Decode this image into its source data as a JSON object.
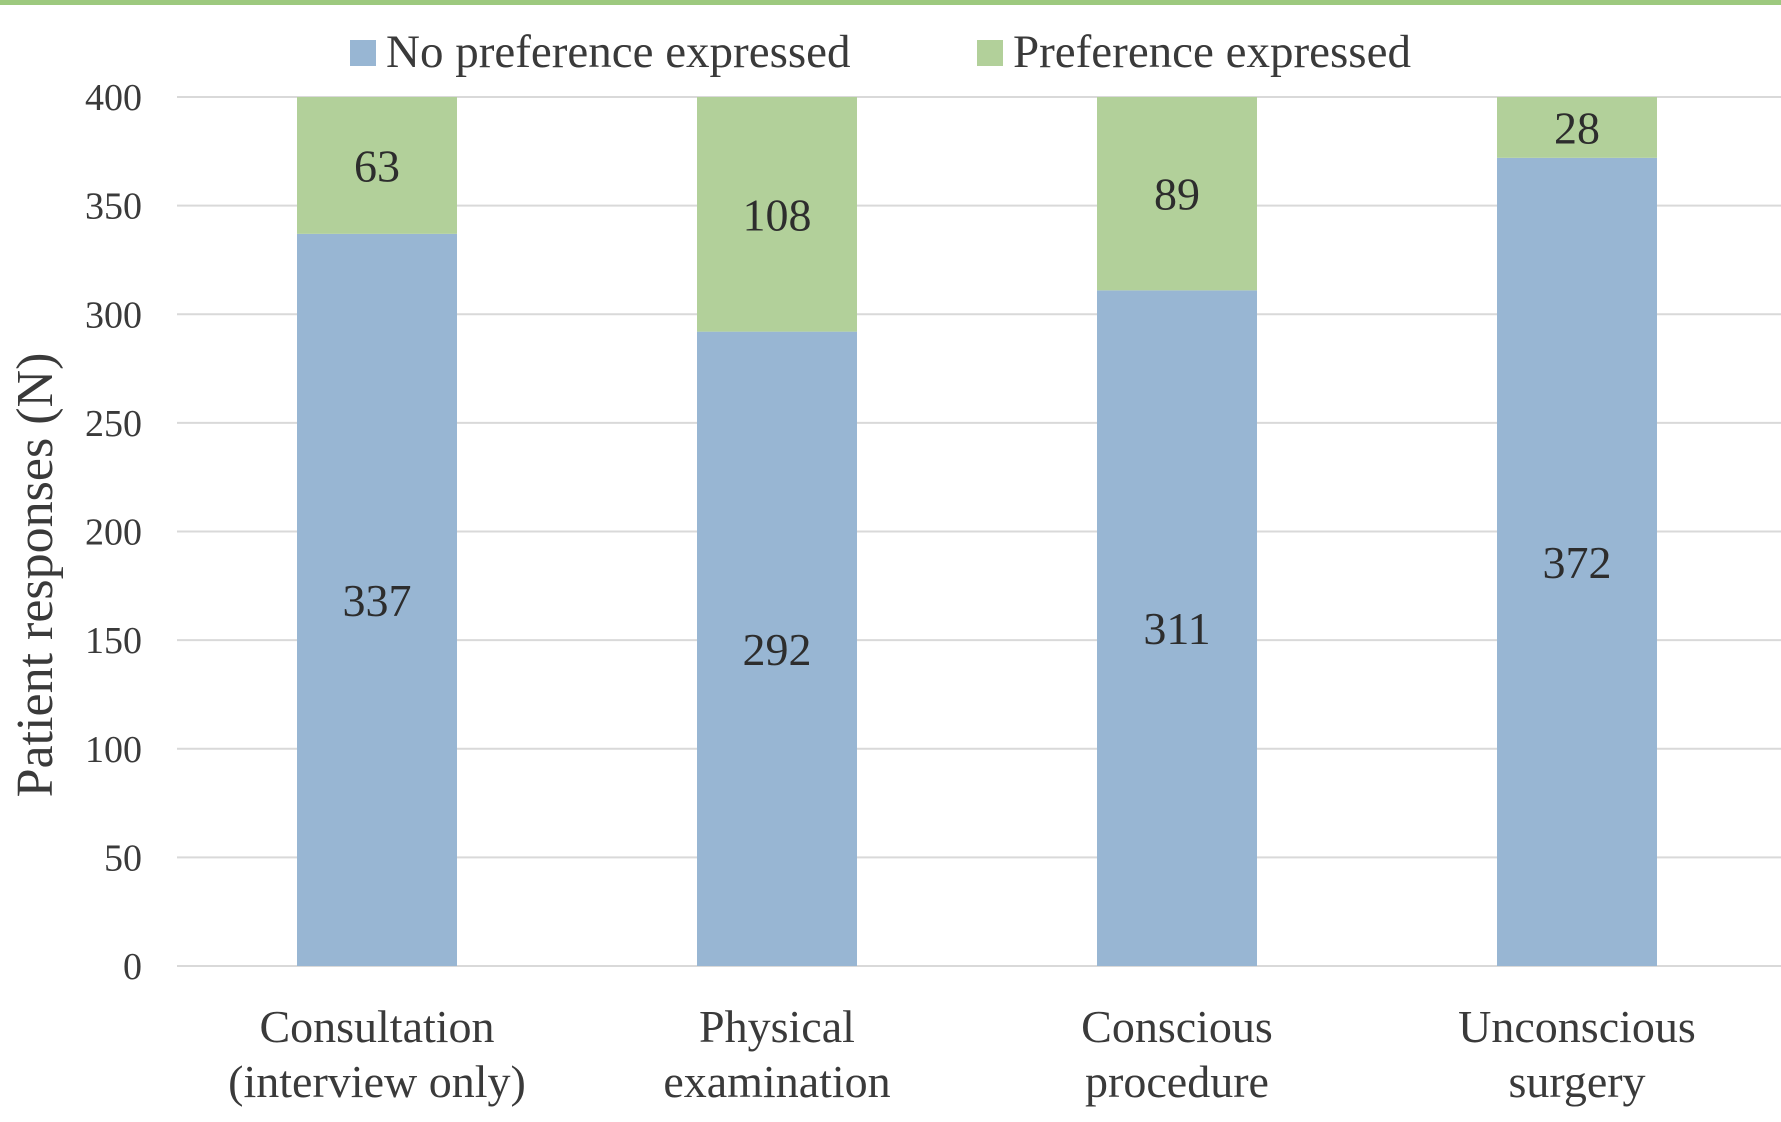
{
  "chart_data": {
    "type": "bar",
    "stacked": true,
    "title": "",
    "xlabel": "",
    "ylabel": "Patient responses (N)",
    "ylim": [
      0,
      400
    ],
    "ytick_step": 50,
    "yticks": [
      "0",
      "50",
      "100",
      "150",
      "200",
      "250",
      "300",
      "350",
      "400"
    ],
    "grid": true,
    "legend_position": "top",
    "categories": [
      [
        "Consultation",
        "(interview only)"
      ],
      [
        "Physical",
        "examination"
      ],
      [
        "Conscious",
        "procedure"
      ],
      [
        "Unconscious",
        "surgery"
      ]
    ],
    "series": [
      {
        "name": "No preference expressed",
        "color": "#98b6d3",
        "values": [
          337,
          292,
          311,
          372
        ]
      },
      {
        "name": "Preference expressed",
        "color": "#b2d09a",
        "values": [
          63,
          108,
          89,
          28
        ]
      }
    ]
  },
  "colors": {
    "gridline": "#d9d9d9",
    "axis_line": "#d9d9d9",
    "text": "#3a3a3a",
    "top_rule": "#9dc97f"
  }
}
